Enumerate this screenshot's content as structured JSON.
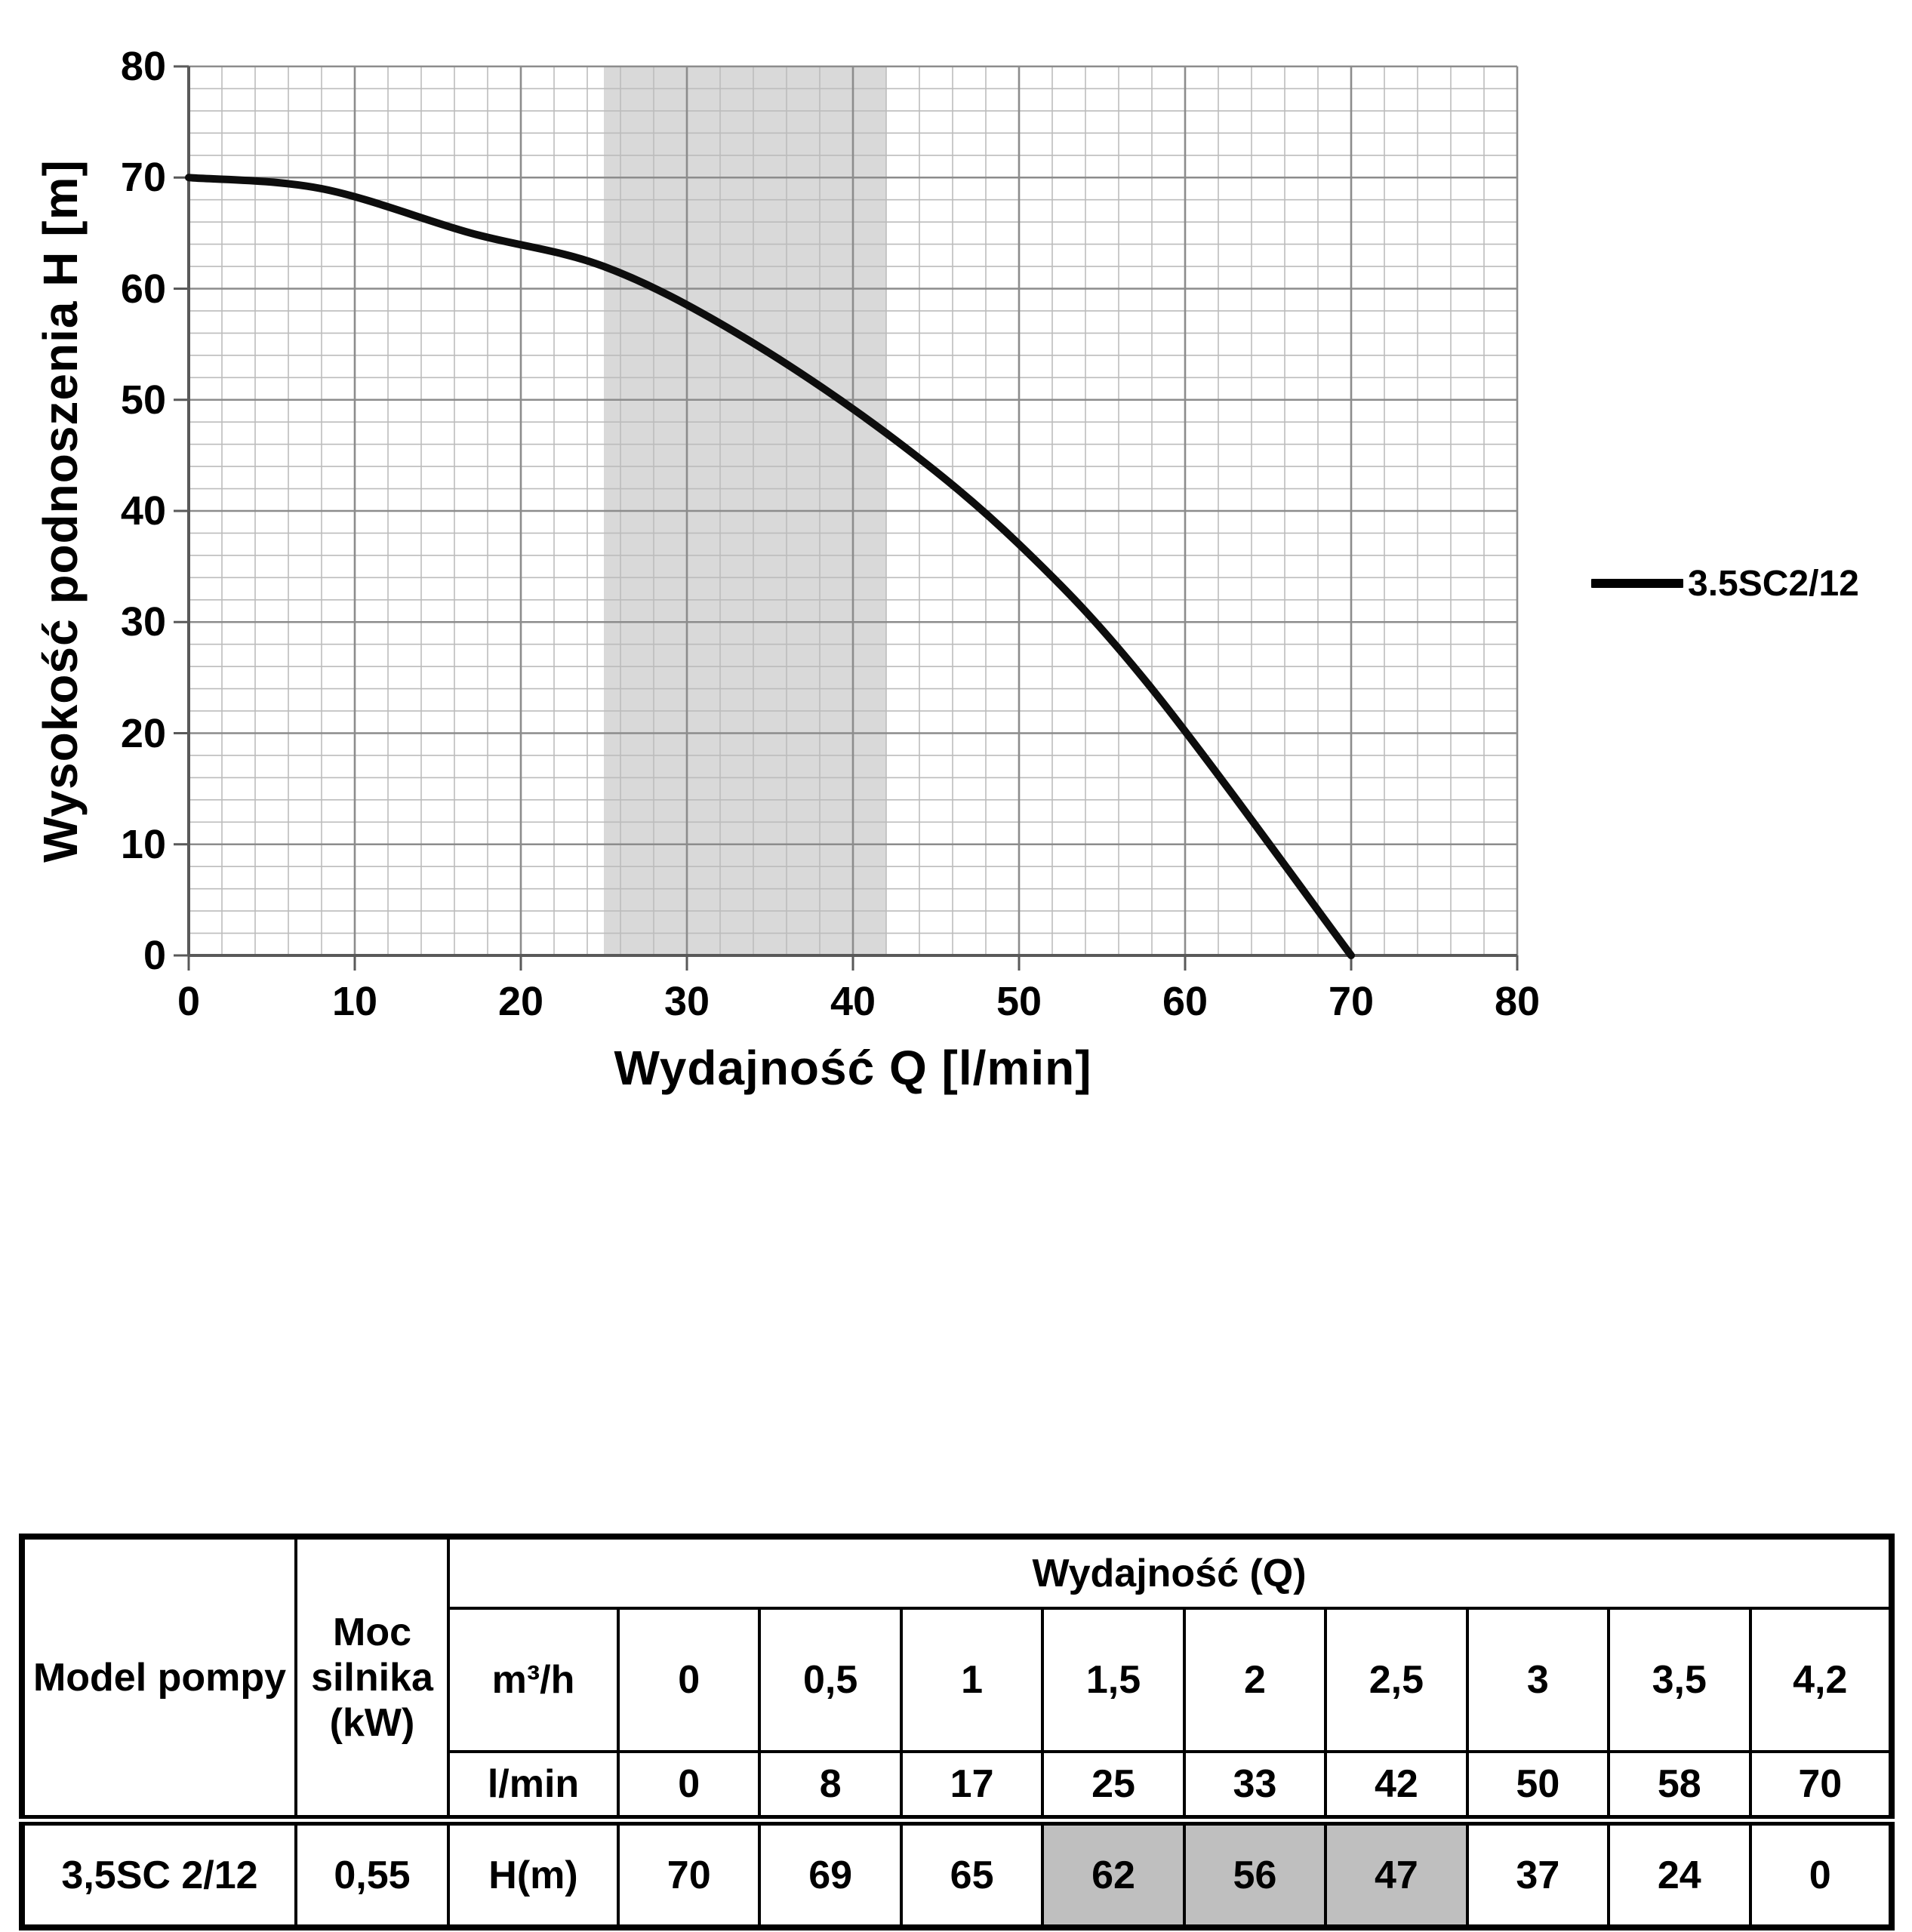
{
  "chart": {
    "ylabel": "Wysokość podnoszenia H [m]",
    "xlabel": "Wydajność Q [l/min]",
    "legend": {
      "label": "3.5SC2/12",
      "line_color": "#000000"
    }
  },
  "chart_data": {
    "type": "line",
    "title": "",
    "xlabel": "Wydajność Q [l/min]",
    "ylabel": "Wysokość podnoszenia H [m]",
    "xlim": [
      0,
      80
    ],
    "ylim": [
      0,
      80
    ],
    "x_ticks": [
      0,
      10,
      20,
      30,
      40,
      50,
      60,
      70,
      80
    ],
    "y_ticks": [
      0,
      10,
      20,
      30,
      40,
      50,
      60,
      70,
      80
    ],
    "minor_grid_step": 2,
    "grid": true,
    "legend_position": "right",
    "band": {
      "x_start": 25,
      "x_end": 42,
      "color": "#d9d9d9"
    },
    "colors": {
      "minor_grid": "#bcbcbc",
      "major_grid": "#8c8c8c",
      "axis": "#595959",
      "curve": "#0d0d0d"
    },
    "series": [
      {
        "name": "3.5SC2/12",
        "color": "#0d0d0d",
        "x": [
          0,
          8,
          17,
          25,
          33,
          42,
          50,
          58,
          70
        ],
        "y": [
          70,
          69,
          65,
          62,
          56,
          47,
          37,
          24,
          0
        ]
      }
    ]
  },
  "table": {
    "model_header": "Model pompy",
    "power_header": "Moc silnika (kW)",
    "q_header": "Wydajność (Q)",
    "row_units": {
      "m3h": "m³/h",
      "lmin": "l/min",
      "h": "H(m)"
    },
    "m3h_values": [
      "0",
      "0,5",
      "1",
      "1,5",
      "2",
      "2,5",
      "3",
      "3,5",
      "4,2"
    ],
    "lmin_values": [
      "0",
      "8",
      "17",
      "25",
      "33",
      "42",
      "50",
      "58",
      "70"
    ],
    "h_values": [
      "70",
      "69",
      "65",
      "62",
      "56",
      "47",
      "37",
      "24",
      "0"
    ],
    "h_highlight_indexes": [
      3,
      4,
      5
    ],
    "highlight_color": "#bfbfbf",
    "model_value": "3,5SC 2/12",
    "power_value": "0,55"
  }
}
